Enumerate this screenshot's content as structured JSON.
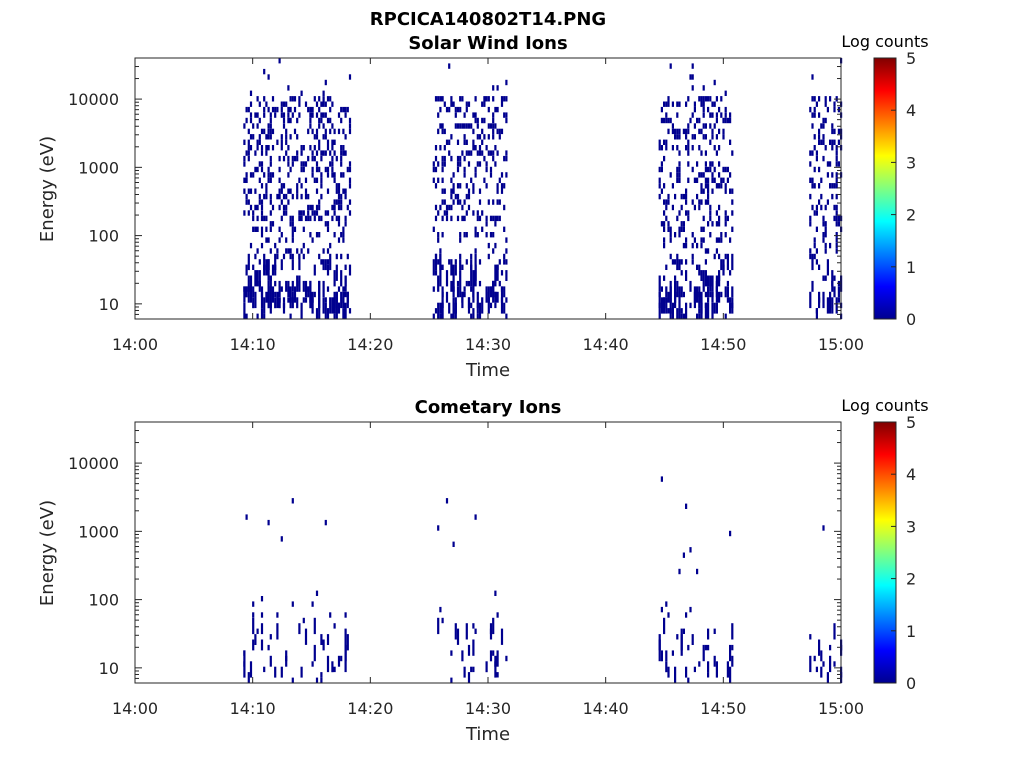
{
  "figure": {
    "title": "RPCICA140802T14.PNG"
  },
  "chart_data": [
    {
      "type": "heatmap",
      "title": "Solar Wind Ions",
      "xlabel": "Time",
      "ylabel": "Energy (eV)",
      "x_ticks": [
        "14:00",
        "14:10",
        "14:20",
        "14:30",
        "14:40",
        "14:50",
        "15:00"
      ],
      "xlim": [
        "14:00",
        "15:00"
      ],
      "y_scale": "log",
      "y_ticks": [
        "10",
        "100",
        "1000",
        "10000"
      ],
      "ylim": [
        6,
        40000
      ],
      "colorbar": {
        "label": "Log counts",
        "ticks": [
          "0",
          "1",
          "2",
          "3",
          "4",
          "5"
        ],
        "range": [
          0,
          5
        ]
      },
      "active_intervals_minutes": [
        [
          9.2,
          18.3
        ],
        [
          25.3,
          31.5
        ],
        [
          44.5,
          50.8
        ],
        [
          57.3,
          60
        ]
      ],
      "value_level": "~0 (dark blue, sparse)"
    },
    {
      "type": "heatmap",
      "title": "Cometary Ions",
      "xlabel": "Time",
      "ylabel": "Energy (eV)",
      "x_ticks": [
        "14:00",
        "14:10",
        "14:20",
        "14:30",
        "14:40",
        "14:50",
        "15:00"
      ],
      "xlim": [
        "14:00",
        "15:00"
      ],
      "y_scale": "log",
      "y_ticks": [
        "10",
        "100",
        "1000",
        "10000"
      ],
      "ylim": [
        6,
        40000
      ],
      "colorbar": {
        "label": "Log counts",
        "ticks": [
          "0",
          "1",
          "2",
          "3",
          "4",
          "5"
        ],
        "range": [
          0,
          5
        ]
      },
      "active_intervals_minutes": [
        [
          9.2,
          18.3
        ],
        [
          25.3,
          31.5
        ],
        [
          44.5,
          50.8
        ],
        [
          57.3,
          60
        ]
      ],
      "value_level": "~0 (dark blue, very sparse)"
    }
  ],
  "colors": {
    "cell": "#00008f",
    "jet": [
      "#00008f",
      "#0000ff",
      "#0080ff",
      "#00ffff",
      "#80ff80",
      "#ffff00",
      "#ff8000",
      "#ff0000",
      "#800000"
    ]
  }
}
